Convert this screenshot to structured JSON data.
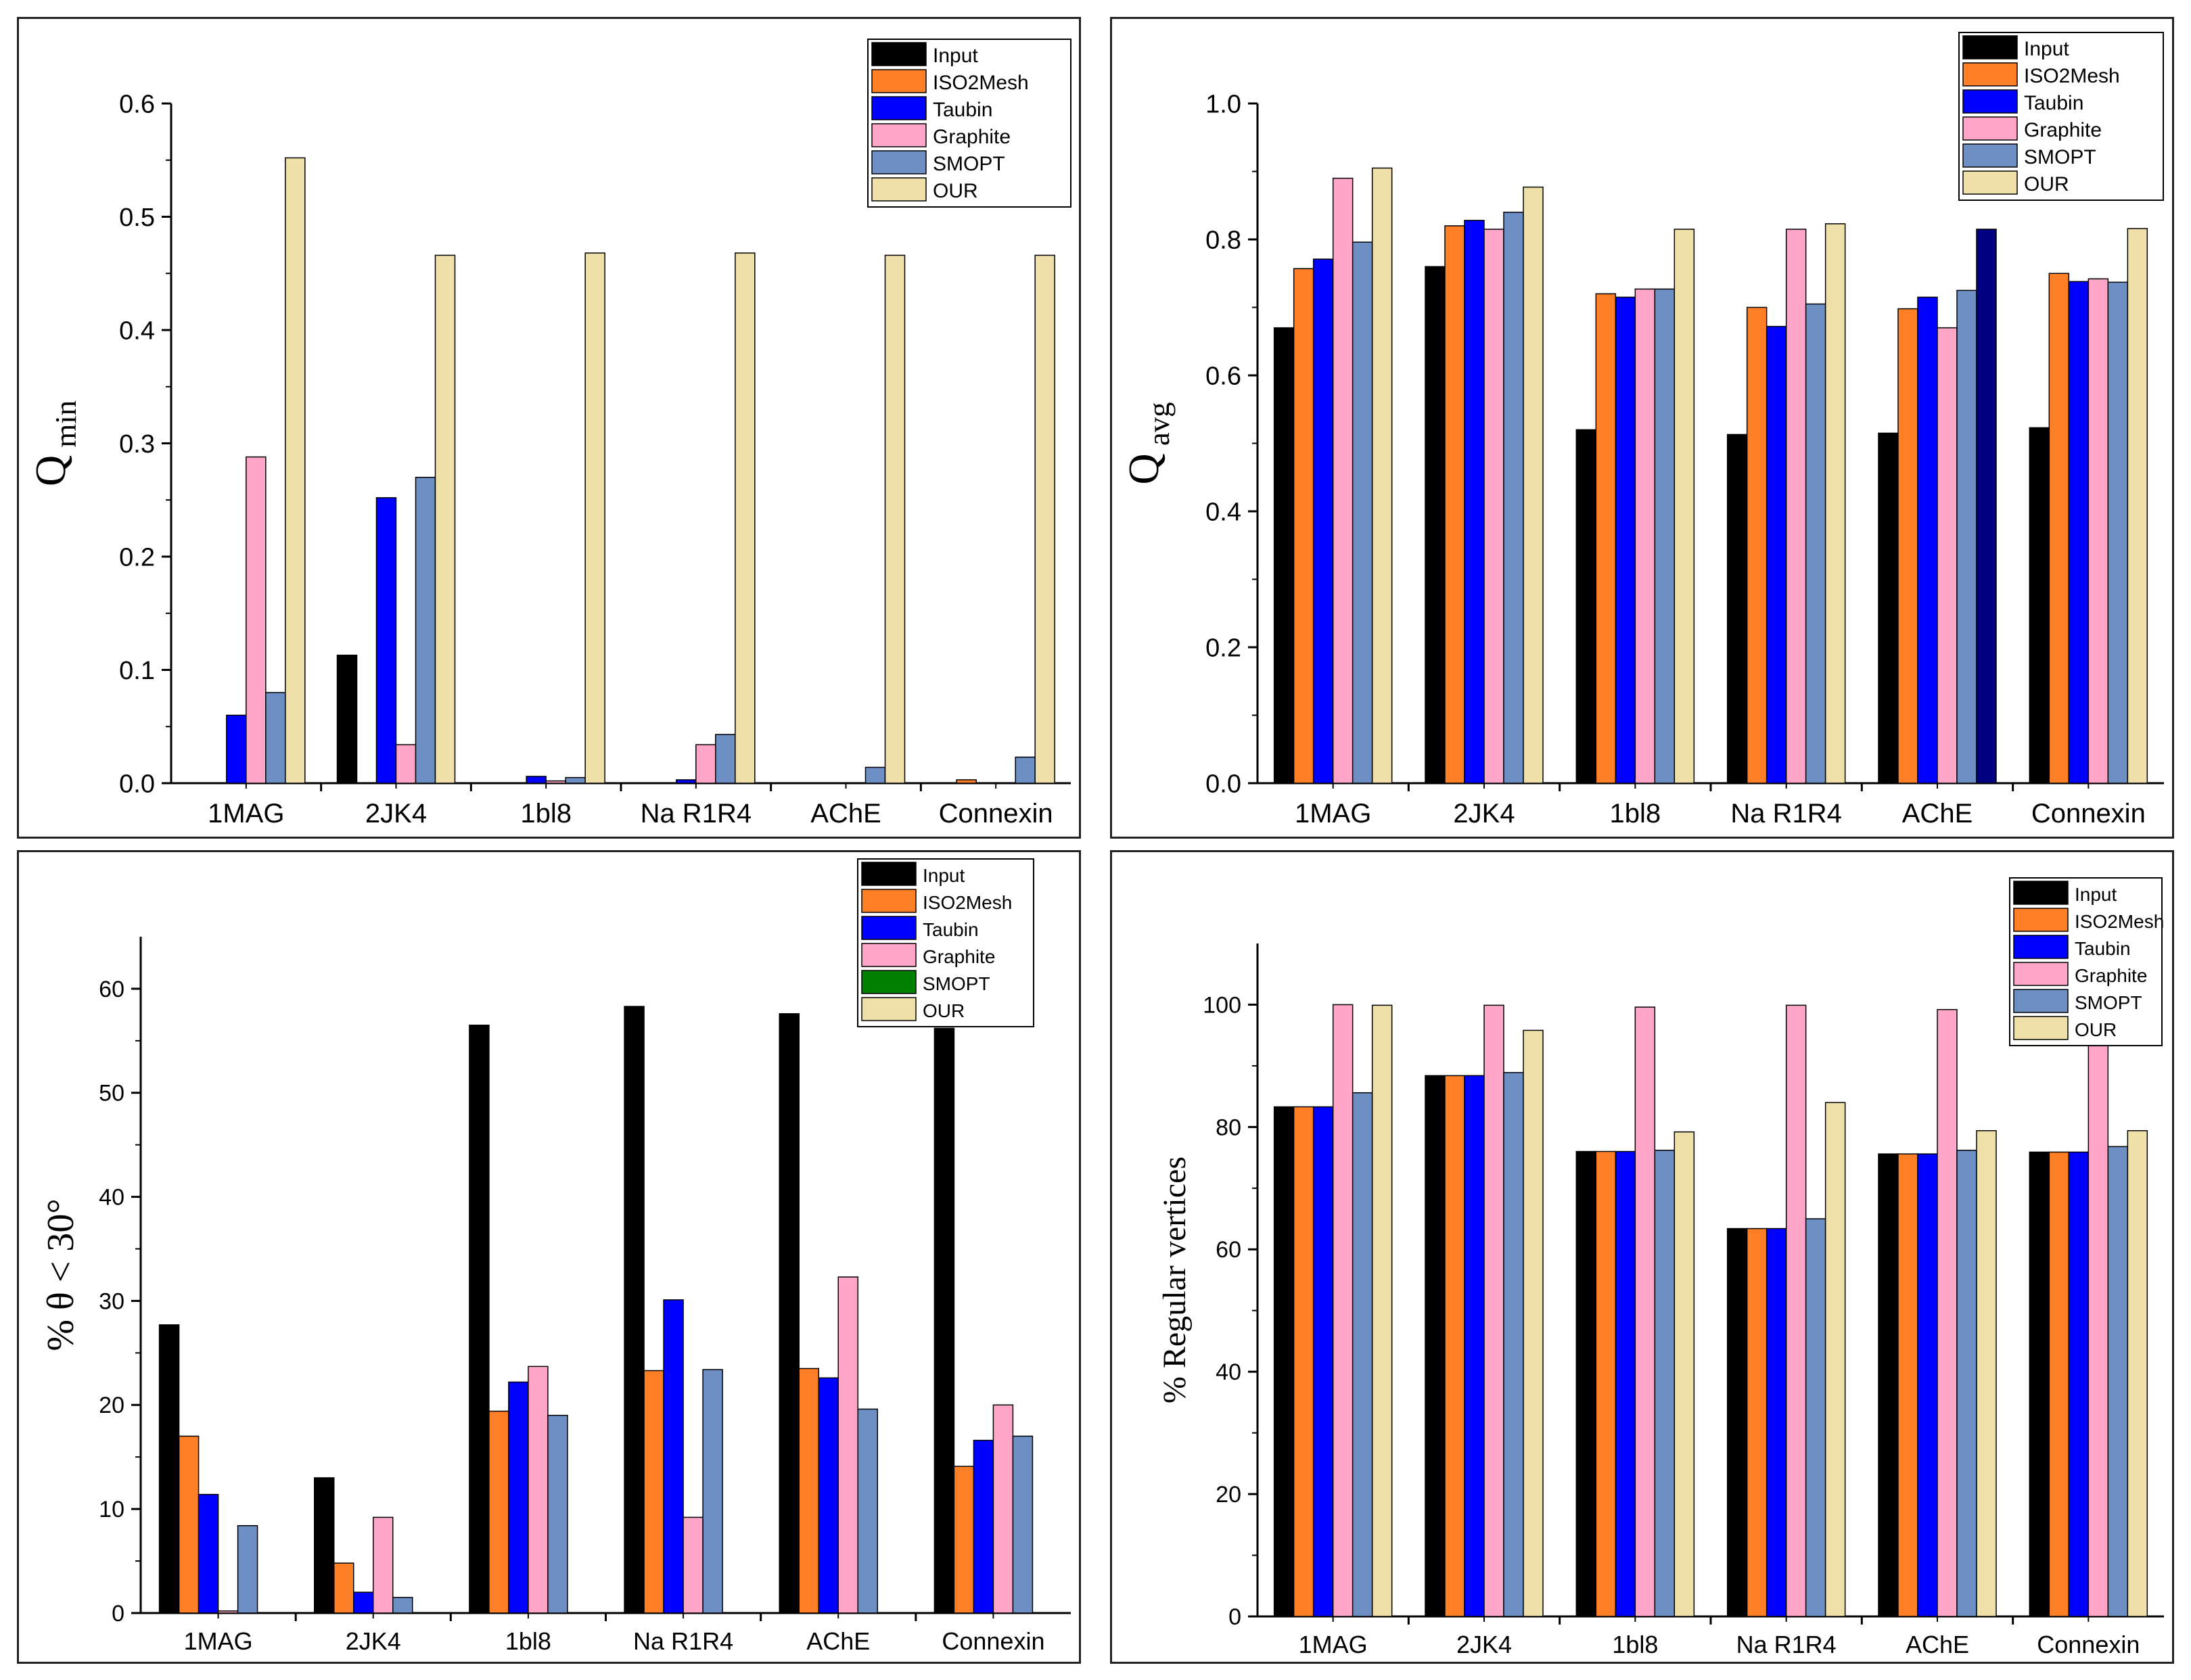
{
  "colors": {
    "Input": "#000000",
    "ISO2Mesh": "#ff7f27",
    "Taubin": "#0000ff",
    "Graphite": "#ffa6c9",
    "SMOPT": "#6d8fc4",
    "OUR": "#eee0a8",
    "SMOPT_green": "#008000",
    "OUR_override_dark": "#000080"
  },
  "chart_data": [
    {
      "type": "bar",
      "ylabel_main": "Q",
      "ylabel_sub": "min",
      "categories": [
        "1MAG",
        "2JK4",
        "1bl8",
        "Na R1R4",
        "AChE",
        "Connexin"
      ],
      "ylim": [
        0,
        0.6
      ],
      "yticks": [
        "0.0",
        "0.1",
        "0.2",
        "0.3",
        "0.4",
        "0.5",
        "0.6"
      ],
      "legend": [
        "Input",
        "ISO2Mesh",
        "Taubin",
        "Graphite",
        "SMOPT",
        "OUR"
      ],
      "series": [
        {
          "name": "Input",
          "values": [
            0,
            0.113,
            0,
            0,
            0,
            0
          ]
        },
        {
          "name": "ISO2Mesh",
          "values": [
            0,
            0,
            0,
            0,
            0,
            0.003
          ]
        },
        {
          "name": "Taubin",
          "values": [
            0.06,
            0.252,
            0.006,
            0.003,
            0,
            0
          ]
        },
        {
          "name": "Graphite",
          "values": [
            0.288,
            0.034,
            0.002,
            0.034,
            0,
            0
          ]
        },
        {
          "name": "SMOPT",
          "values": [
            0.08,
            0.27,
            0.005,
            0.043,
            0.014,
            0.023
          ]
        },
        {
          "name": "OUR",
          "values": [
            0.552,
            0.466,
            0.468,
            0.468,
            0.466,
            0.466
          ]
        }
      ]
    },
    {
      "type": "bar",
      "ylabel_main": "Q",
      "ylabel_sub": "avg",
      "categories": [
        "1MAG",
        "2JK4",
        "1bl8",
        "Na R1R4",
        "AChE",
        "Connexin"
      ],
      "ylim": [
        0,
        1.0
      ],
      "yticks": [
        "0.0",
        "0.2",
        "0.4",
        "0.6",
        "0.8",
        "1.0"
      ],
      "legend": [
        "Input",
        "ISO2Mesh",
        "Taubin",
        "Graphite",
        "SMOPT",
        "OUR"
      ],
      "series": [
        {
          "name": "Input",
          "values": [
            0.67,
            0.76,
            0.52,
            0.513,
            0.515,
            0.523
          ]
        },
        {
          "name": "ISO2Mesh",
          "values": [
            0.757,
            0.82,
            0.72,
            0.7,
            0.698,
            0.75
          ]
        },
        {
          "name": "Taubin",
          "values": [
            0.771,
            0.828,
            0.715,
            0.672,
            0.715,
            0.738
          ]
        },
        {
          "name": "Graphite",
          "values": [
            0.89,
            0.815,
            0.727,
            0.815,
            0.67,
            0.742
          ]
        },
        {
          "name": "SMOPT",
          "values": [
            0.796,
            0.84,
            0.727,
            0.705,
            0.725,
            0.737
          ]
        },
        {
          "name": "OUR",
          "values": [
            0.905,
            0.877,
            0.815,
            0.823,
            0.815,
            0.816
          ]
        }
      ],
      "special_colors": [
        {
          "series": "OUR",
          "category": "AChE",
          "color_key": "OUR_override_dark"
        }
      ]
    },
    {
      "type": "bar",
      "ylabel_main": "% θ < 30°",
      "ylabel_sub": "",
      "categories": [
        "1MAG",
        "2JK4",
        "1bl8",
        "Na R1R4",
        "AChE",
        "Connexin"
      ],
      "ylim": [
        0,
        65
      ],
      "yticks": [
        "0",
        "10",
        "20",
        "30",
        "40",
        "50",
        "60"
      ],
      "legend": [
        "Input",
        "ISO2Mesh",
        "Taubin",
        "Graphite",
        "SMOPT",
        "OUR"
      ],
      "legend_colors_override": {
        "SMOPT": "SMOPT_green"
      },
      "series": [
        {
          "name": "Input",
          "values": [
            27.7,
            13,
            56.5,
            58.3,
            57.6,
            56.2
          ]
        },
        {
          "name": "ISO2Mesh",
          "values": [
            17,
            4.8,
            19.4,
            23.3,
            23.5,
            14.1
          ]
        },
        {
          "name": "Taubin",
          "values": [
            11.4,
            2,
            22.2,
            30.1,
            22.6,
            16.6
          ]
        },
        {
          "name": "Graphite",
          "values": [
            0.2,
            9.2,
            23.7,
            9.2,
            32.3,
            20
          ]
        },
        {
          "name": "SMOPT",
          "values": [
            8.4,
            1.5,
            19,
            23.4,
            19.6,
            17
          ]
        },
        {
          "name": "OUR",
          "values": [
            0,
            0,
            0,
            0,
            0,
            0
          ]
        }
      ]
    },
    {
      "type": "bar",
      "ylabel_main": "% Regular vertices",
      "ylabel_sub": "",
      "categories": [
        "1MAG",
        "2JK4",
        "1bl8",
        "Na R1R4",
        "AChE",
        "Connexin"
      ],
      "ylim": [
        0,
        110
      ],
      "yticks": [
        "0",
        "20",
        "40",
        "60",
        "80",
        "100"
      ],
      "legend": [
        "Input",
        "ISO2Mesh",
        "Taubin",
        "Graphite",
        "SMOPT",
        "OUR"
      ],
      "series": [
        {
          "name": "Input",
          "values": [
            83.3,
            88.4,
            76,
            63.4,
            75.6,
            75.9
          ]
        },
        {
          "name": "ISO2Mesh",
          "values": [
            83.3,
            88.4,
            76,
            63.4,
            75.6,
            75.9
          ]
        },
        {
          "name": "Taubin",
          "values": [
            83.3,
            88.4,
            76,
            63.4,
            75.6,
            75.9
          ]
        },
        {
          "name": "Graphite",
          "values": [
            100,
            99.9,
            99.6,
            99.9,
            99.2,
            99.6
          ]
        },
        {
          "name": "SMOPT",
          "values": [
            85.6,
            88.9,
            76.2,
            65,
            76.2,
            76.8
          ]
        },
        {
          "name": "OUR",
          "values": [
            99.9,
            95.8,
            79.2,
            84,
            79.4,
            79.4
          ]
        }
      ]
    }
  ]
}
